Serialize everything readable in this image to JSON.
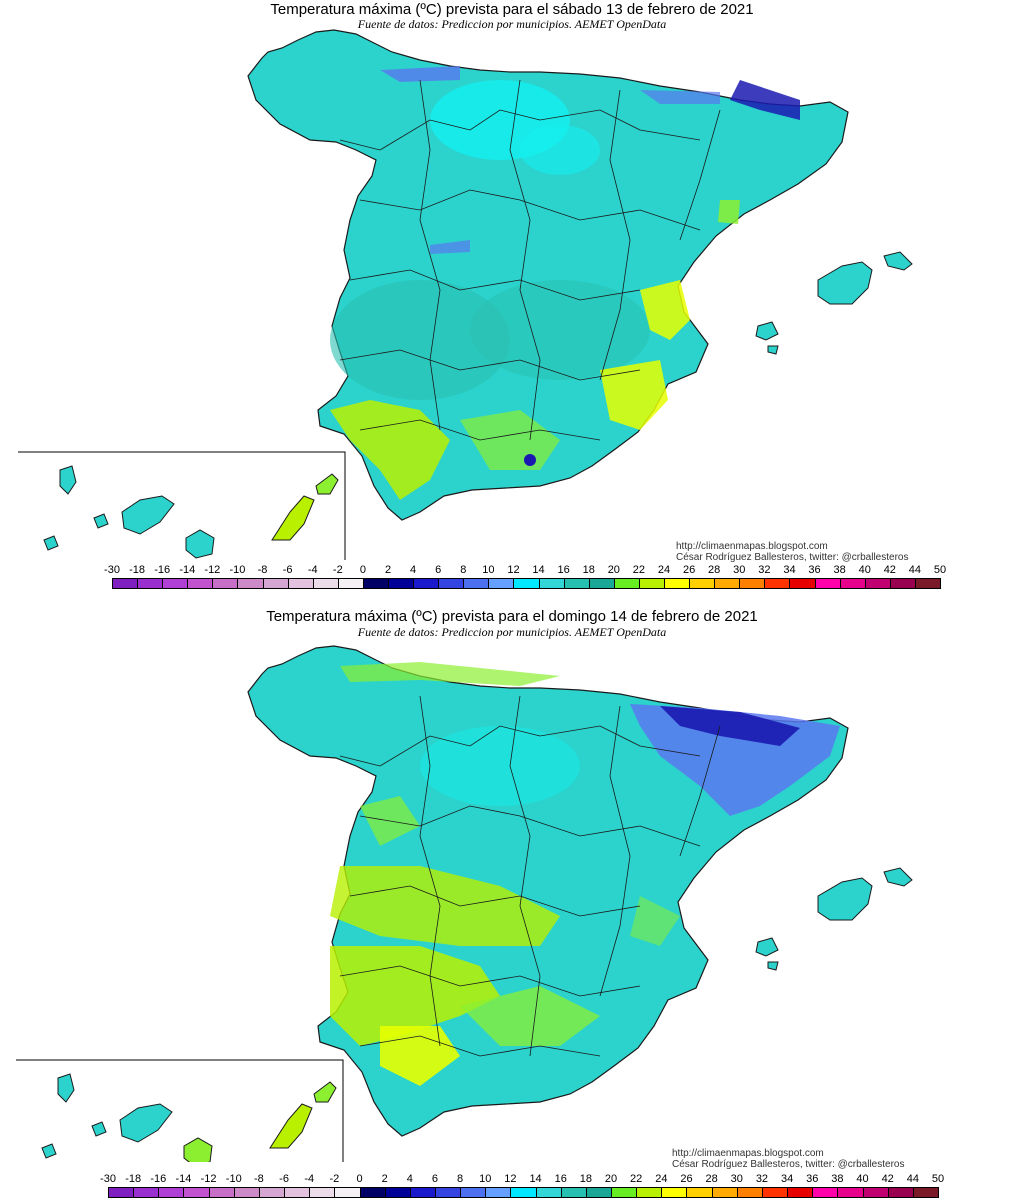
{
  "panels": [
    {
      "title": "Temperatura máxima (ºC) prevista para el sábado 13 de febrero de 2021",
      "subtitle": "Fuente de datos: Prediccion por municipios. AEMET OpenData",
      "credit_url": "http://climaenmapas.blogspot.com",
      "credit_author": "César Rodríguez Ballesteros, twitter: @crballesteros"
    },
    {
      "title": "Temperatura máxima (ºC) prevista para el domingo 14 de febrero de 2021",
      "subtitle": "Fuente de datos: Prediccion por municipios. AEMET OpenData",
      "credit_url": "http://climaenmapas.blogspot.com",
      "credit_author": "César Rodríguez Ballesteros, twitter: @crballesteros"
    }
  ],
  "legend": {
    "labels": [
      "-30",
      "-18",
      "-16",
      "-14",
      "-12",
      "-10",
      "-8",
      "-6",
      "-4",
      "-2",
      "0",
      "2",
      "4",
      "6",
      "8",
      "10",
      "12",
      "14",
      "16",
      "18",
      "20",
      "22",
      "24",
      "26",
      "28",
      "30",
      "32",
      "34",
      "36",
      "38",
      "40",
      "42",
      "44",
      "50"
    ],
    "colors": [
      "#7f1fbf",
      "#9a2fcf",
      "#b03fd6",
      "#c153cf",
      "#c76ec6",
      "#cc8ac8",
      "#d6a6d2",
      "#e2c2de",
      "#ecdcea",
      "#f4f0f4",
      "#000066",
      "#000099",
      "#1a1acc",
      "#3344e0",
      "#4d70f0",
      "#66a0ff",
      "#00e8ff",
      "#33d6d6",
      "#26c0b0",
      "#1aa896",
      "#66ee22",
      "#b8f000",
      "#ffff00",
      "#ffd000",
      "#ffaa00",
      "#ff8000",
      "#ff3300",
      "#e60000",
      "#ff00aa",
      "#e6008c",
      "#c00070",
      "#990050",
      "#7a1a28"
    ]
  },
  "colors": {
    "sea": "#ffffff",
    "land_base": "#2bd3cc",
    "land_cool": "#29bfb0",
    "cyan_high": "#14f0f0",
    "warm_green": "#8cf030",
    "warm_yellow": "#e6ff00",
    "cold_blue": "#5a78f0",
    "cold_navy": "#1a1ab0",
    "border": "#1a1a1a"
  }
}
